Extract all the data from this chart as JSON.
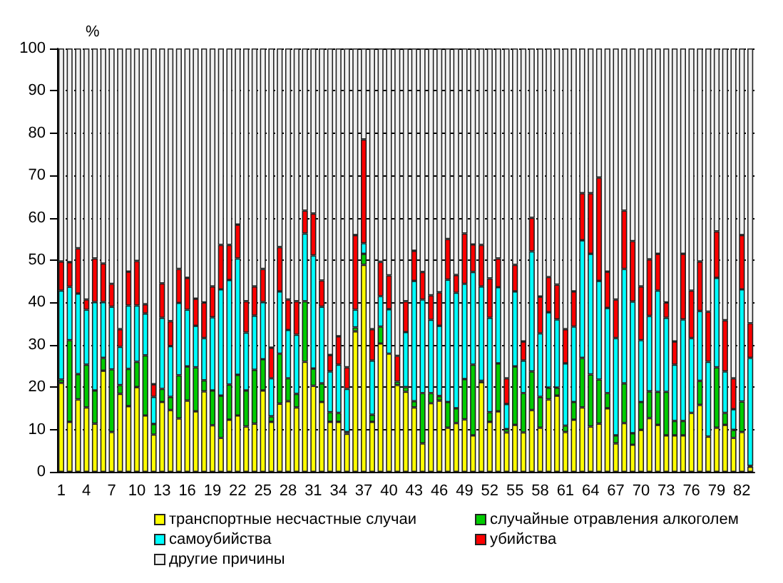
{
  "chart_data": {
    "type": "bar",
    "stacked": true,
    "ylabel": "%",
    "ylim": [
      0,
      100
    ],
    "yticks": [
      0,
      10,
      20,
      30,
      40,
      50,
      60,
      70,
      80,
      90,
      100
    ],
    "grid": "y",
    "legend": "bottom",
    "categories": [
      "1",
      null,
      null,
      "4",
      null,
      null,
      "7",
      null,
      null,
      "10",
      null,
      null,
      "13",
      null,
      null,
      "16",
      null,
      null,
      "19",
      null,
      null,
      "22",
      null,
      null,
      "25",
      null,
      null,
      "28",
      null,
      null,
      "31",
      null,
      null,
      "34",
      null,
      null,
      "37",
      null,
      null,
      "40",
      null,
      null,
      "43",
      null,
      null,
      "46",
      null,
      null,
      "49",
      null,
      null,
      "52",
      null,
      null,
      "55",
      null,
      null,
      "58",
      null,
      null,
      "61",
      null,
      null,
      "64",
      null,
      null,
      "67",
      null,
      null,
      "70",
      null,
      null,
      "73",
      null,
      null,
      "76",
      null,
      null,
      "79",
      null,
      null,
      "82",
      null
    ],
    "series": [
      {
        "name": "транспортные несчастные случаи",
        "color": "#ffff00",
        "values": [
          21,
          11.8,
          17.1,
          15.2,
          11.4,
          23.9,
          9.4,
          18.4,
          15.5,
          20,
          13.3,
          8.8,
          16.5,
          14.6,
          12.6,
          16.8,
          14.3,
          19,
          11,
          8,
          12.3,
          13.3,
          10.7,
          11.4,
          19.2,
          11.8,
          16.1,
          16.7,
          15.2,
          26,
          20.3,
          16.5,
          11.8,
          11.8,
          9,
          33.2,
          48.9,
          11.8,
          30.3,
          27.9,
          20.5,
          18.9,
          15.2,
          6.7,
          16.2,
          16.8,
          10.4,
          11.5,
          12.4,
          8.6,
          21.2,
          11.8,
          14.3,
          9.3,
          11.1,
          9.3,
          14.6,
          10.4,
          17.1,
          18,
          9.4,
          12.3,
          15.2,
          10.7,
          11.4,
          15,
          6.7,
          11.5,
          6.4,
          9.9,
          12.7,
          11.1,
          8.6,
          8.6,
          8.6,
          13.9,
          15.8,
          8.3,
          10.4,
          11.1,
          8,
          9.4,
          1.2
        ]
      },
      {
        "name": "случайные отравления алкоголем",
        "color": "#00cc00",
        "values": [
          0.8,
          19.3,
          6,
          10.1,
          7.8,
          3,
          14.8,
          2.1,
          8.8,
          6,
          14.2,
          2.5,
          3.1,
          3.1,
          10.2,
          8.1,
          10.4,
          2.6,
          8.2,
          10,
          8.3,
          9.6,
          8.5,
          12.7,
          7.4,
          1.3,
          11.8,
          5.4,
          3.2,
          14.3,
          4.1,
          4.4,
          2.3,
          2.1,
          0.4,
          0.9,
          2.6,
          1.7,
          4,
          null,
          0.8,
          1.1,
          1.5,
          11.9,
          2.4,
          1.1,
          6.1,
          3.5,
          9.5,
          16.7,
          0.3,
          2.3,
          11.3,
          0.8,
          13.8,
          9.3,
          9.1,
          7.3,
          2.8,
          1.9,
          1.5,
          4.2,
          11.7,
          12.3,
          10.4,
          3.6,
          1.9,
          9.4,
          2.7,
          6.6,
          6.3,
          7.8,
          10.3,
          3.4,
          3.4,
          null,
          5.7,
          null,
          14.3,
          2.8,
          1.9,
          7.2,
          0.2
        ]
      },
      {
        "name": "самоубийства",
        "color": "#00ffff",
        "values": [
          21,
          12.6,
          19,
          13,
          20.9,
          13.2,
          14.8,
          9,
          15,
          13.3,
          9.9,
          6.4,
          16.8,
          12,
          17.1,
          13.4,
          9.8,
          10,
          17.3,
          25.1,
          24.7,
          27.5,
          13.7,
          12.8,
          13.5,
          9,
          14.7,
          11.4,
          14,
          16,
          26.7,
          18.1,
          9.6,
          11.4,
          10.2,
          4.2,
          2.5,
          12.8,
          7.2,
          10.5,
          null,
          13,
          28.4,
          22.1,
          17.3,
          16.6,
          28.9,
          27.3,
          22.5,
          21.9,
          22.3,
          22.3,
          18,
          5.9,
          17.7,
          7.7,
          28.4,
          15,
          17.8,
          16.1,
          14.7,
          17.8,
          27.8,
          28.5,
          23.3,
          20.1,
          23,
          27,
          31.1,
          14.6,
          17.8,
          23.9,
          17.5,
          13.3,
          24,
          17.7,
          16.5,
          17.7,
          21.1,
          9.8,
          4.9,
          26.5,
          25.5
        ]
      },
      {
        "name": "убийства",
        "color": "#ff0000",
        "values": [
          6.9,
          5.8,
          10.7,
          2.4,
          10.3,
          9.1,
          5.4,
          4.2,
          8,
          10.5,
          2.2,
          3,
          8.1,
          5.9,
          8,
          7.5,
          6.4,
          8.4,
          7.3,
          10.5,
          8.3,
          8,
          7.4,
          6.9,
          7.8,
          7.2,
          10.5,
          7.2,
          7.9,
          5.4,
          9.9,
          6.2,
          3.9,
          6.7,
          5.1,
          17.6,
          24.5,
          7.4,
          8.1,
          8,
          6.1,
          7.3,
          7.1,
          6.5,
          5.8,
          7.9,
          9.6,
          4.2,
          11.9,
          6.5,
          9.8,
          9.3,
          6.8,
          6.1,
          6.3,
          4.5,
          7.9,
          8.7,
          8.3,
          8.2,
          8.1,
          8.3,
          11.1,
          14.3,
          24.4,
          8.6,
          9.1,
          13.8,
          14.3,
          12.7,
          13.4,
          8.7,
          3.6,
          5.5,
          15.5,
          11.2,
          11.7,
          11.8,
          11,
          12.1,
          7.3,
          12.8,
          8.2
        ]
      },
      {
        "name": "другие причины",
        "color": "#f0f0f0",
        "values": [
          50.3,
          50.5,
          47.2,
          59.3,
          49.6,
          50.8,
          55.6,
          66.3,
          52.7,
          50.2,
          60.4,
          79.3,
          55.5,
          64.4,
          52.1,
          54.2,
          59.1,
          60,
          56.2,
          46.4,
          46.4,
          41.6,
          59.7,
          56.2,
          52.1,
          70.7,
          46.9,
          59.3,
          59.7,
          38.3,
          39,
          54.8,
          72.4,
          68,
          75.3,
          44.1,
          21.5,
          66.3,
          50.4,
          53.6,
          72.6,
          59.7,
          47.8,
          52.8,
          58.3,
          57.6,
          45,
          53.5,
          43.7,
          46.3,
          46.4,
          54.3,
          49.6,
          77.9,
          51.1,
          69.2,
          40,
          58.6,
          54,
          55.8,
          66.3,
          57.4,
          34.2,
          34.2,
          30.5,
          52.7,
          59.3,
          38.3,
          45.5,
          56.2,
          49.8,
          48.5,
          60,
          69.2,
          48.5,
          57.2,
          50.3,
          62.2,
          43.2,
          64.2,
          77.9,
          44.1,
          64.9
        ]
      }
    ]
  }
}
